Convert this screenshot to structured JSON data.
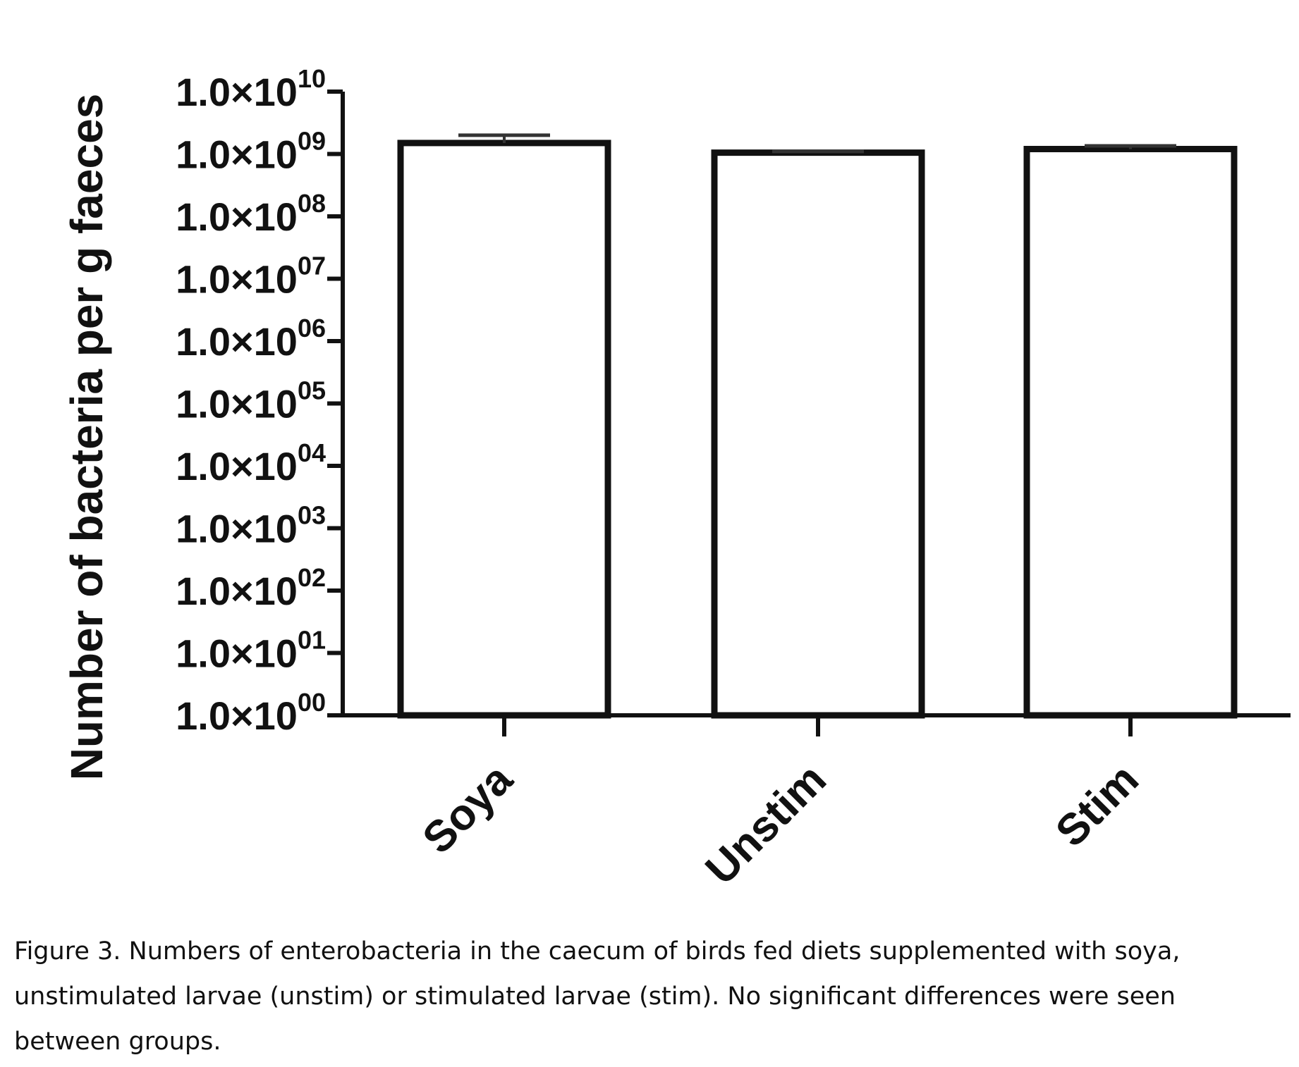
{
  "chart_data": {
    "type": "bar",
    "categories": [
      "Soya",
      "Unstim",
      "Stim"
    ],
    "values": [
      1500000000,
      1050000000,
      1200000000
    ],
    "error_upper": [
      2000000000,
      1100000000,
      1350000000
    ],
    "ylabel": "Number of bacteria per g faeces",
    "yscale": "log",
    "ylim": [
      1,
      10000000000
    ],
    "yticks": [
      {
        "mantissa": "1.0×10",
        "exp": "00"
      },
      {
        "mantissa": "1.0×10",
        "exp": "01"
      },
      {
        "mantissa": "1.0×10",
        "exp": "02"
      },
      {
        "mantissa": "1.0×10",
        "exp": "03"
      },
      {
        "mantissa": "1.0×10",
        "exp": "04"
      },
      {
        "mantissa": "1.0×10",
        "exp": "05"
      },
      {
        "mantissa": "1.0×10",
        "exp": "06"
      },
      {
        "mantissa": "1.0×10",
        "exp": "07"
      },
      {
        "mantissa": "1.0×10",
        "exp": "08"
      },
      {
        "mantissa": "1.0×10",
        "exp": "09"
      },
      {
        "mantissa": "1.0×10",
        "exp": "10"
      }
    ],
    "bar_fill": "#ffffff",
    "bar_stroke": "#111111",
    "grid": false,
    "legend": "none"
  },
  "caption": "Figure 3. Numbers of enterobacteria in the caecum of birds fed diets supplemented with soya, unstimulated larvae (unstim) or stimulated larvae (stim). No significant differences were seen between groups."
}
